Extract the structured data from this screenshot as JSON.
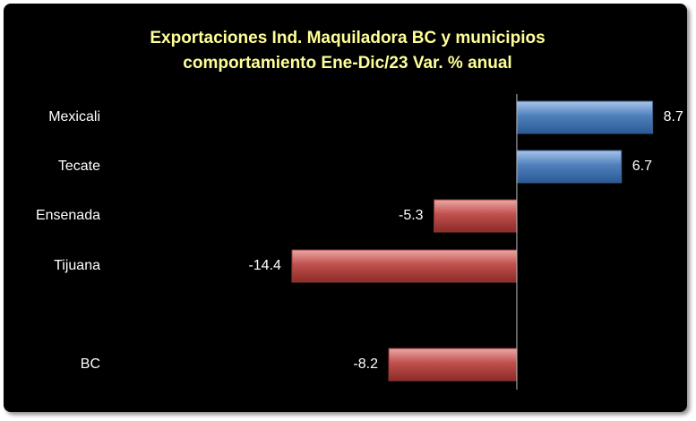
{
  "chart_data": {
    "type": "bar",
    "orientation": "horizontal",
    "title_lines": [
      "Exportaciones Ind. Maquiladora BC y municipios",
      "comportamiento Ene-Dic/23 Var. % anual"
    ],
    "categories": [
      "Mexicali",
      "Tecate",
      "Ensenada",
      "Tijuana",
      "BC"
    ],
    "values": [
      8.7,
      6.7,
      -5.3,
      -14.4,
      -8.2
    ],
    "value_labels": [
      "8.7",
      "6.7",
      "-5.3",
      "-14.4",
      "-8.2"
    ],
    "xlim": [
      -26.5,
      10.5
    ],
    "grid": false,
    "colors": {
      "positive": "#4f81bd",
      "negative": "#c0504d",
      "title": "#ffff99",
      "background": "#000000",
      "text": "#ffffff"
    }
  }
}
